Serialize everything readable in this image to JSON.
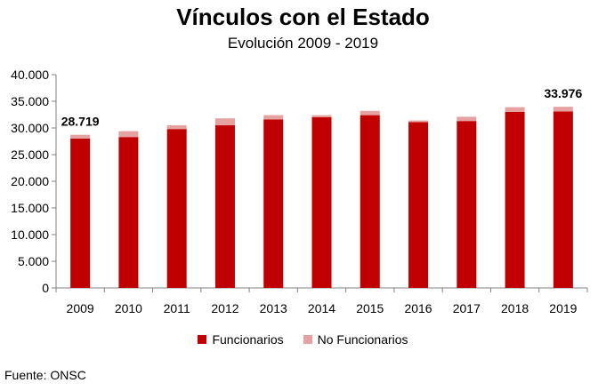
{
  "colors": {
    "funcionarios": "#C00000",
    "no_funcionarios": "#E6A1A1",
    "axis": "#808080"
  },
  "chart_data": {
    "type": "bar",
    "stacked": true,
    "title": "Vínculos con el Estado",
    "subtitle": "Evolución 2009 - 2019",
    "categories": [
      "2009",
      "2010",
      "2011",
      "2012",
      "2013",
      "2014",
      "2015",
      "2016",
      "2017",
      "2018",
      "2019"
    ],
    "series": [
      {
        "name": "Funcionarios",
        "values": [
          28000,
          28300,
          29800,
          30500,
          31600,
          32000,
          32400,
          31100,
          31300,
          33000,
          33100
        ]
      },
      {
        "name": "No Funcionarios",
        "values": [
          719,
          1100,
          700,
          1300,
          800,
          400,
          800,
          300,
          800,
          900,
          876
        ]
      }
    ],
    "ylim": [
      0,
      40000
    ],
    "yticks": [
      0,
      5000,
      10000,
      15000,
      20000,
      25000,
      30000,
      35000,
      40000
    ],
    "ytick_labels": [
      "0",
      "5.000",
      "10.000",
      "15.000",
      "20.000",
      "25.000",
      "30.000",
      "35.000",
      "40.000"
    ],
    "annotations": [
      {
        "category": "2009",
        "text": "28.719"
      },
      {
        "category": "2019",
        "text": "33.976"
      }
    ],
    "legend_position": "bottom",
    "grid": false
  },
  "source": "Fuente: ONSC"
}
